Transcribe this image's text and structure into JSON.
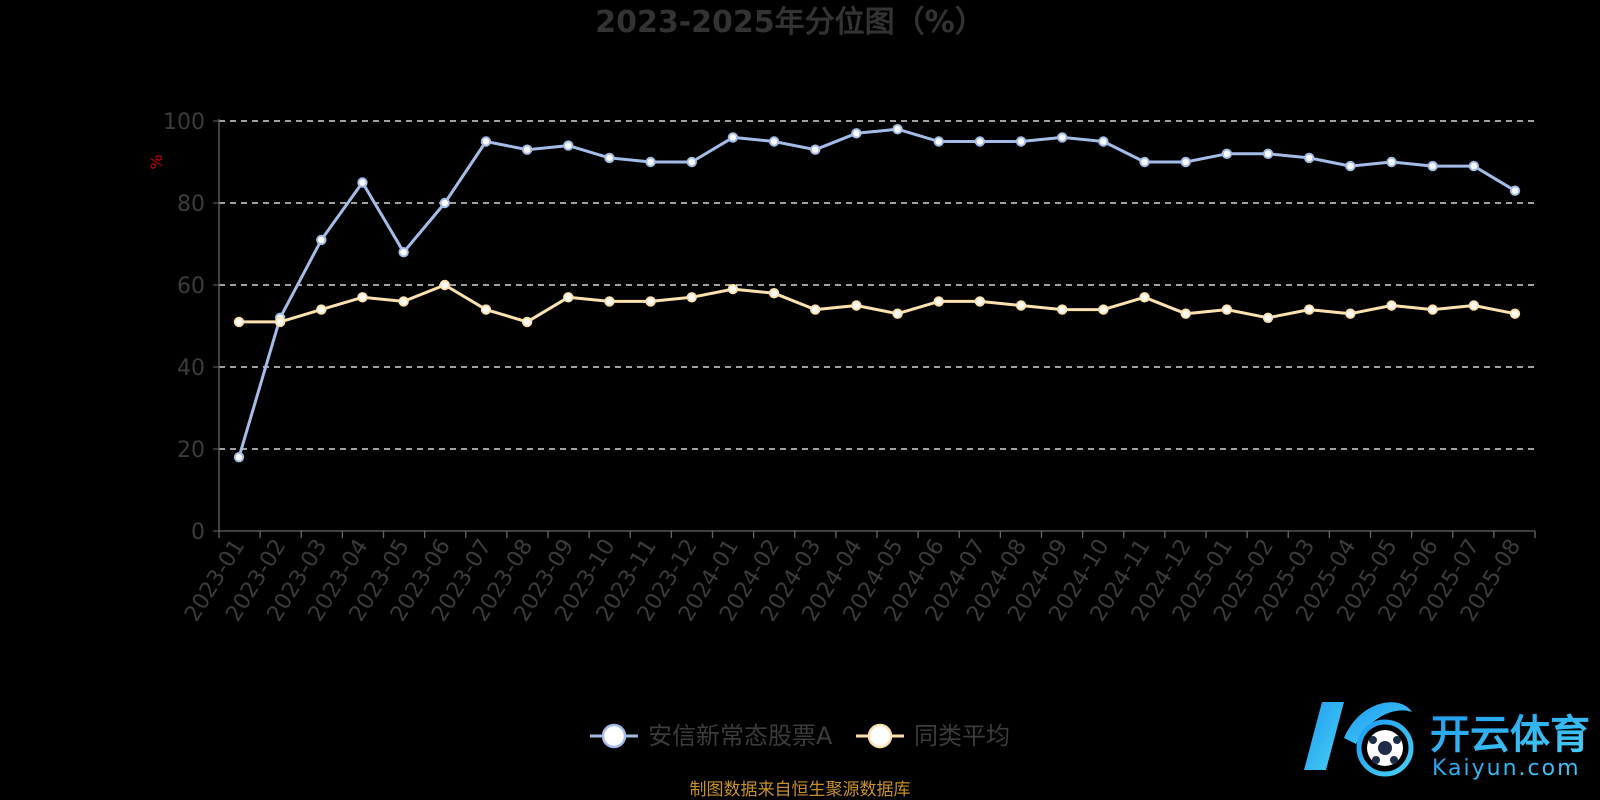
{
  "chart_data": {
    "type": "line",
    "title": "2023-2025年分位图（%）",
    "ylabel": "%",
    "xlabel": "",
    "ylim": [
      0,
      100
    ],
    "yticks": [
      0,
      20,
      40,
      60,
      80,
      100
    ],
    "grid": true,
    "legend_position": "bottom-center",
    "categories": [
      "2023-01",
      "2023-02",
      "2023-03",
      "2023-04",
      "2023-05",
      "2023-06",
      "2023-07",
      "2023-08",
      "2023-09",
      "2023-10",
      "2023-11",
      "2023-12",
      "2024-01",
      "2024-02",
      "2024-03",
      "2024-04",
      "2024-05",
      "2024-06",
      "2024-07",
      "2024-08",
      "2024-09",
      "2024-10",
      "2024-11",
      "2024-12",
      "2025-01",
      "2025-02",
      "2025-03",
      "2025-04",
      "2025-05",
      "2025-06",
      "2025-07",
      "2025-08"
    ],
    "series": [
      {
        "name": "安信新常态股票A",
        "color": "#a4bde8",
        "values": [
          18,
          52,
          71,
          85,
          68,
          80,
          95,
          93,
          94,
          91,
          90,
          90,
          96,
          95,
          93,
          97,
          98,
          95,
          95,
          95,
          96,
          95,
          90,
          90,
          92,
          92,
          91,
          89,
          90,
          89,
          89,
          83
        ]
      },
      {
        "name": "同类平均",
        "color": "#fde2b0",
        "values": [
          51,
          51,
          54,
          57,
          56,
          60,
          54,
          51,
          57,
          56,
          56,
          57,
          59,
          58,
          54,
          55,
          53,
          56,
          56,
          55,
          54,
          54,
          57,
          53,
          54,
          52,
          54,
          53,
          55,
          54,
          55,
          53
        ]
      }
    ]
  },
  "footer": {
    "source": "制图数据来自恒生聚源数据库"
  },
  "watermark": {
    "cn": "开云体育",
    "en": "Kaiyun.com",
    "colors": [
      "#1e9bf0",
      "#4ad0f5"
    ]
  }
}
